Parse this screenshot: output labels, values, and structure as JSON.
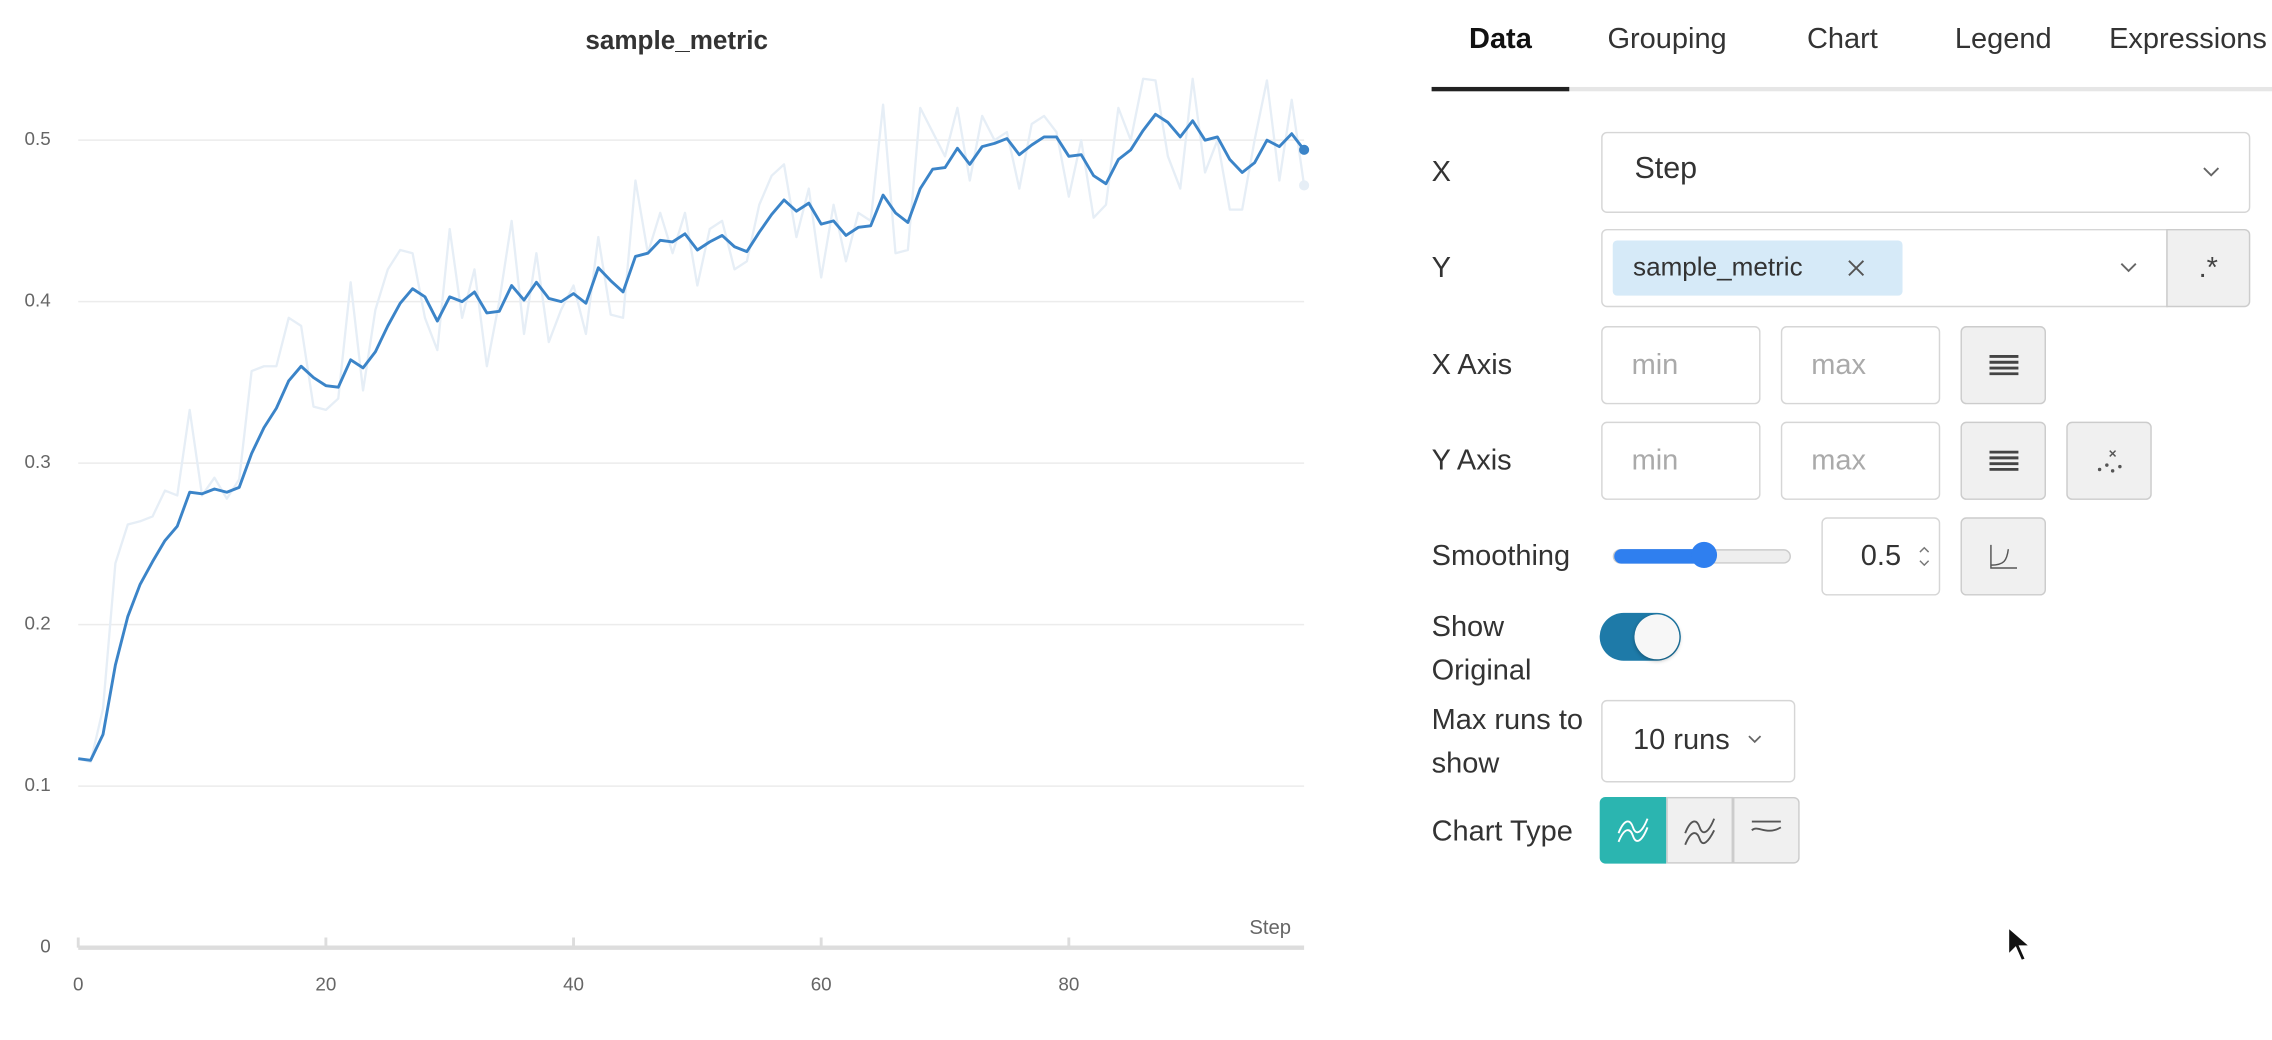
{
  "chart_data": {
    "type": "line",
    "title": "sample_metric",
    "x_label": "Step",
    "x": [
      0,
      1,
      2,
      3,
      4,
      5,
      6,
      7,
      8,
      9,
      10,
      11,
      12,
      13,
      14,
      15,
      16,
      17,
      18,
      19,
      20,
      21,
      22,
      23,
      24,
      25,
      26,
      27,
      28,
      29,
      30,
      31,
      32,
      33,
      34,
      35,
      36,
      37,
      38,
      39,
      40,
      41,
      42,
      43,
      44,
      45,
      46,
      47,
      48,
      49,
      50,
      51,
      52,
      53,
      54,
      55,
      56,
      57,
      58,
      59,
      60,
      61,
      62,
      63,
      64,
      65,
      66,
      67,
      68,
      69,
      70,
      71,
      72,
      73,
      74,
      75,
      76,
      77,
      78,
      79,
      80,
      81,
      82,
      83,
      84,
      85,
      86,
      87,
      88,
      89,
      90,
      91,
      92,
      93,
      94,
      95,
      96,
      97,
      98,
      99
    ],
    "series": [
      {
        "color": "#e6eef6",
        "values": [
          0.117,
          0.115,
          0.148,
          0.238,
          0.262,
          0.264,
          0.267,
          0.283,
          0.28,
          0.333,
          0.28,
          0.291,
          0.278,
          0.29,
          0.357,
          0.36,
          0.36,
          0.39,
          0.385,
          0.335,
          0.333,
          0.34,
          0.412,
          0.345,
          0.395,
          0.42,
          0.432,
          0.43,
          0.39,
          0.37,
          0.445,
          0.39,
          0.42,
          0.36,
          0.4,
          0.45,
          0.38,
          0.43,
          0.375,
          0.395,
          0.41,
          0.38,
          0.44,
          0.392,
          0.39,
          0.475,
          0.43,
          0.455,
          0.43,
          0.455,
          0.41,
          0.445,
          0.45,
          0.42,
          0.425,
          0.46,
          0.478,
          0.485,
          0.44,
          0.47,
          0.415,
          0.46,
          0.425,
          0.455,
          0.45,
          0.522,
          0.43,
          0.432,
          0.52,
          0.505,
          0.49,
          0.52,
          0.475,
          0.515,
          0.5,
          0.505,
          0.47,
          0.51,
          0.515,
          0.505,
          0.465,
          0.5,
          0.452,
          0.46,
          0.52,
          0.5,
          0.538,
          0.537,
          0.49,
          0.47,
          0.538,
          0.48,
          0.5,
          0.457,
          0.457,
          0.5,
          0.537,
          0.475,
          0.525,
          0.472
        ]
      },
      {
        "color": "#3b84c8",
        "values": [
          0.117,
          0.116,
          0.132,
          0.175,
          0.205,
          0.225,
          0.239,
          0.252,
          0.261,
          0.282,
          0.281,
          0.284,
          0.282,
          0.285,
          0.306,
          0.322,
          0.334,
          0.351,
          0.36,
          0.353,
          0.348,
          0.347,
          0.364,
          0.359,
          0.369,
          0.385,
          0.399,
          0.408,
          0.403,
          0.388,
          0.403,
          0.4,
          0.406,
          0.393,
          0.394,
          0.41,
          0.401,
          0.412,
          0.402,
          0.4,
          0.405,
          0.399,
          0.421,
          0.413,
          0.406,
          0.428,
          0.43,
          0.438,
          0.437,
          0.442,
          0.432,
          0.437,
          0.441,
          0.434,
          0.431,
          0.443,
          0.454,
          0.463,
          0.456,
          0.461,
          0.448,
          0.45,
          0.441,
          0.446,
          0.447,
          0.466,
          0.455,
          0.449,
          0.47,
          0.482,
          0.483,
          0.495,
          0.485,
          0.496,
          0.498,
          0.501,
          0.491,
          0.497,
          0.502,
          0.502,
          0.49,
          0.491,
          0.478,
          0.473,
          0.488,
          0.494,
          0.506,
          0.516,
          0.511,
          0.502,
          0.512,
          0.5,
          0.502,
          0.488,
          0.48,
          0.486,
          0.5,
          0.496,
          0.504,
          0.494
        ]
      }
    ],
    "xlim": [
      0,
      99
    ],
    "xticks": [
      0,
      20,
      40,
      60,
      80
    ],
    "ylim": [
      0,
      0.55
    ],
    "yticks": [
      0,
      0.1,
      0.2,
      0.3,
      0.4,
      0.5
    ],
    "grid": true
  },
  "panel": {
    "tabs": [
      "Data",
      "Grouping",
      "Chart",
      "Legend",
      "Expressions"
    ],
    "active_tab": 0,
    "x_label": "X",
    "x_value": "Step",
    "y_label": "Y",
    "y_tag": "sample_metric",
    "regex": ".*",
    "x_axis_label": "X Axis",
    "y_axis_label": "Y Axis",
    "min_placeholder": "min",
    "max_placeholder": "max",
    "smoothing_label": "Smoothing",
    "smoothing_value": 0.5,
    "show_original_label": "Show Original",
    "show_original": true,
    "max_runs_label": "Max runs to show",
    "max_runs_value": "10 runs",
    "chart_type_label": "Chart Type",
    "chart_type_selected": 0
  }
}
